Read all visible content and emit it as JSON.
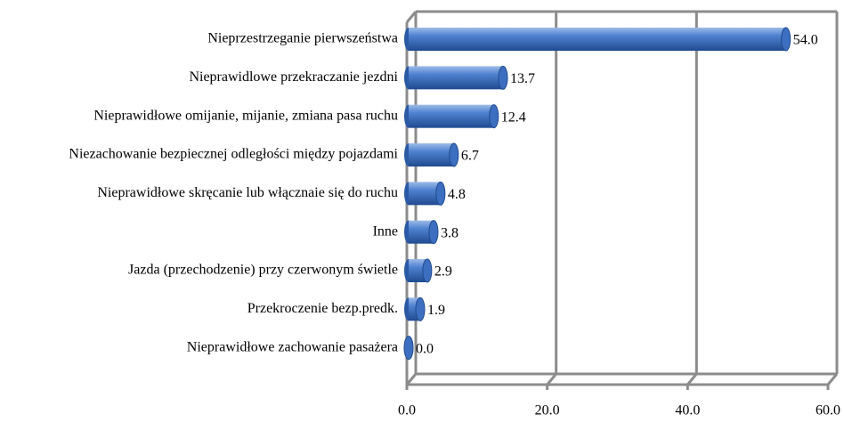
{
  "chart_data": {
    "type": "bar",
    "orientation": "horizontal",
    "categories": [
      "Nieprzestrzeganie pierwszeństwa",
      "Nieprawidlowe przekraczanie jezdni",
      "Nieprawidłowe omijanie, mijanie, zmiana pasa ruchu",
      "Niezachowanie bezpiecznej odległości między pojazdami",
      "Nieprawidłowe skręcanie lub włącznaie się do ruchu",
      "Inne",
      "Jazda (przechodzenie) przy czerwonym świetle",
      "Przekroczenie bezp.predk.",
      "Nieprawidłowe zachowanie pasażera"
    ],
    "values": [
      54.0,
      13.7,
      12.4,
      6.7,
      4.8,
      3.8,
      2.9,
      1.9,
      0.0
    ],
    "value_labels": [
      "54.0",
      "13.7",
      "12.4",
      "6.7",
      "4.8",
      "3.8",
      "2.9",
      "1.9",
      "0.0"
    ],
    "color": "#3d6fc0",
    "xlim": [
      0,
      60
    ],
    "xticks": [
      {
        "value": 0,
        "label": "0.0"
      },
      {
        "value": 20,
        "label": "20.0"
      },
      {
        "value": 40,
        "label": "40.0"
      },
      {
        "value": 60,
        "label": "60.0"
      }
    ],
    "grid": true
  }
}
